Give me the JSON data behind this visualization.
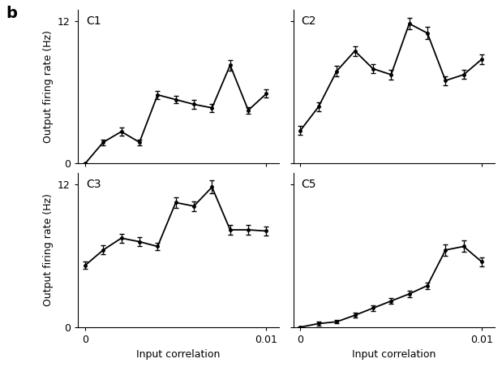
{
  "panels": [
    {
      "label": "C1",
      "x": [
        0,
        0.001,
        0.002,
        0.003,
        0.004,
        0.005,
        0.006,
        0.007,
        0.008,
        0.009,
        0.01
      ],
      "y": [
        0.0,
        1.8,
        2.7,
        1.8,
        5.8,
        5.4,
        5.0,
        4.7,
        8.3,
        4.5,
        5.9
      ],
      "yerr": [
        0.05,
        0.25,
        0.35,
        0.25,
        0.35,
        0.3,
        0.35,
        0.35,
        0.45,
        0.28,
        0.35
      ],
      "ylim": [
        0,
        13
      ],
      "yticks": [
        0,
        12
      ]
    },
    {
      "label": "C2",
      "x": [
        0,
        0.001,
        0.002,
        0.003,
        0.004,
        0.005,
        0.006,
        0.007,
        0.008,
        0.009,
        0.01
      ],
      "y": [
        2.8,
        4.8,
        7.8,
        9.5,
        8.0,
        7.5,
        11.8,
        11.0,
        7.0,
        7.5,
        8.8
      ],
      "yerr": [
        0.35,
        0.4,
        0.45,
        0.4,
        0.4,
        0.4,
        0.5,
        0.5,
        0.38,
        0.38,
        0.4
      ],
      "ylim": [
        0,
        13
      ],
      "yticks": [
        0,
        12
      ]
    },
    {
      "label": "C3",
      "x": [
        0,
        0.001,
        0.002,
        0.003,
        0.004,
        0.005,
        0.006,
        0.007,
        0.008,
        0.009,
        0.01
      ],
      "y": [
        5.2,
        6.5,
        7.5,
        7.2,
        6.8,
        10.5,
        10.2,
        11.8,
        8.2,
        8.2,
        8.1
      ],
      "yerr": [
        0.3,
        0.38,
        0.38,
        0.38,
        0.3,
        0.45,
        0.4,
        0.55,
        0.38,
        0.38,
        0.38
      ],
      "ylim": [
        0,
        13
      ],
      "yticks": [
        0,
        12
      ]
    },
    {
      "label": "C5",
      "x": [
        0,
        0.001,
        0.002,
        0.003,
        0.004,
        0.005,
        0.006,
        0.007,
        0.008,
        0.009,
        0.01
      ],
      "y": [
        0.0,
        0.3,
        0.45,
        1.0,
        1.6,
        2.2,
        2.8,
        3.5,
        6.5,
        6.8,
        5.5
      ],
      "yerr": [
        0.05,
        0.15,
        0.15,
        0.2,
        0.22,
        0.25,
        0.25,
        0.28,
        0.48,
        0.48,
        0.38
      ],
      "ylim": [
        0,
        13
      ],
      "yticks": [
        0,
        12
      ]
    }
  ],
  "xlabel": "Input correlation",
  "ylabel": "Output firing rate (Hz)",
  "xticks": [
    0,
    0.01
  ],
  "xticklabels": [
    "0",
    "0.01"
  ],
  "panel_label": "b",
  "line_color": "black",
  "marker": "o",
  "markersize": 2.5,
  "linewidth": 1.3,
  "capsize": 2,
  "elinewidth": 0.9,
  "tick_fontsize": 9,
  "label_fontsize": 9,
  "panel_fontsize": 10,
  "b_fontsize": 14
}
